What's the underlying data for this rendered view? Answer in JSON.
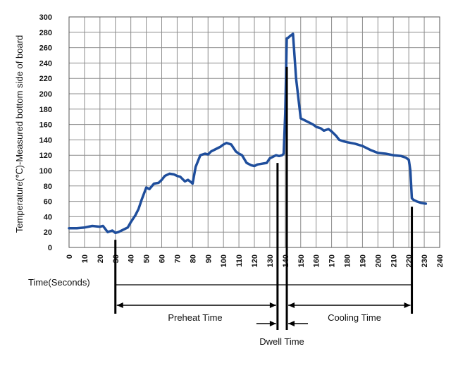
{
  "chart_data": {
    "type": "line",
    "ylabel": "Temperature(℃)-Measured bottom side of board",
    "xlabel": "Time(Seconds)",
    "xlim": [
      0,
      240
    ],
    "ylim": [
      0,
      300
    ],
    "x_ticks": [
      "0",
      "10",
      "20",
      "30",
      "40",
      "50",
      "60",
      "70",
      "80",
      "90",
      "100",
      "110",
      "120",
      "130",
      "140",
      "150",
      "160",
      "170",
      "180",
      "190",
      "200",
      "210",
      "220",
      "230",
      "240"
    ],
    "y_ticks": [
      "0",
      "20",
      "40",
      "60",
      "80",
      "100",
      "120",
      "140",
      "160",
      "180",
      "200",
      "220",
      "240",
      "260",
      "280",
      "300"
    ],
    "grid": true,
    "series": [
      {
        "color": "#1f4e9c",
        "x": [
          0,
          5,
          10,
          15,
          20,
          22,
          25,
          28,
          30,
          32,
          35,
          38,
          40,
          43,
          45,
          47,
          50,
          52,
          55,
          58,
          60,
          62,
          65,
          68,
          70,
          72,
          75,
          77,
          79,
          80,
          82,
          85,
          88,
          90,
          92,
          95,
          98,
          100,
          102,
          105,
          108,
          110,
          112,
          115,
          118,
          120,
          122,
          125,
          128,
          130,
          132,
          134,
          136,
          138,
          139,
          140,
          141,
          142,
          143,
          145,
          147,
          150,
          153,
          155,
          158,
          160,
          163,
          165,
          168,
          170,
          173,
          175,
          178,
          180,
          185,
          190,
          195,
          200,
          205,
          210,
          215,
          218,
          220,
          221,
          222,
          223,
          225,
          228,
          231
        ],
        "y": [
          25,
          25,
          26,
          28,
          27,
          28,
          20,
          22,
          19,
          20,
          23,
          26,
          33,
          42,
          50,
          62,
          78,
          76,
          83,
          84,
          88,
          93,
          96,
          95,
          93,
          92,
          86,
          88,
          85,
          83,
          105,
          120,
          122,
          121,
          125,
          128,
          131,
          134,
          136,
          134,
          125,
          122,
          120,
          110,
          107,
          106,
          108,
          109,
          110,
          116,
          118,
          120,
          119,
          120,
          122,
          175,
          272,
          273,
          275,
          278,
          220,
          168,
          165,
          163,
          160,
          157,
          155,
          152,
          154,
          151,
          145,
          140,
          138,
          137,
          135,
          132,
          127,
          123,
          122,
          120,
          119,
          117,
          114,
          100,
          64,
          62,
          60,
          58,
          57
        ]
      }
    ],
    "phase_markers": [
      30,
      135,
      141,
      222
    ],
    "annotations": {
      "preheat": "Preheat Time",
      "cooling": "Cooling Time",
      "dwell": "Dwell Time"
    }
  }
}
